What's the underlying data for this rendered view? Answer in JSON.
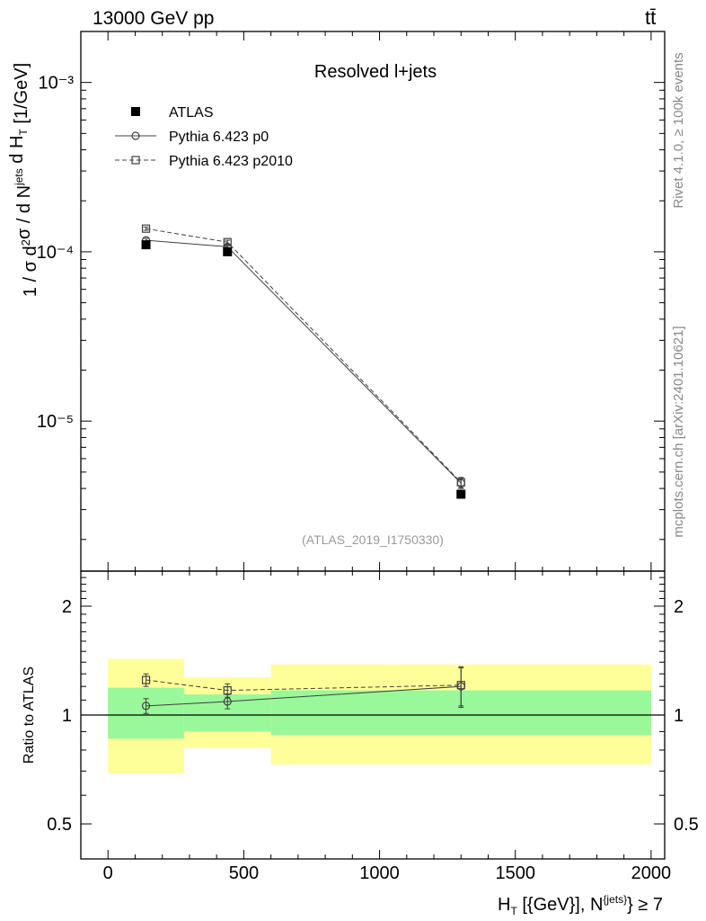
{
  "header": {
    "left": "13000 GeV pp",
    "right": "tt̄"
  },
  "side_labels": {
    "rivet": "Rivet 4.1.0, ≥ 100k events",
    "mcplots": "mcplots.cern.ch [arXiv:2401.10621]"
  },
  "chart_data": [
    {
      "type": "scatter",
      "panel": "main",
      "title": "Resolved l+jets",
      "watermark": "(ATLAS_2019_I1750330)",
      "ylabel": "1 / σ d²σ / d N^{jets} d H_T^{tt̄} [1/GeV]",
      "yscale": "log",
      "ylim": [
        1.3e-06,
        0.002
      ],
      "xlim": [
        -100,
        2050
      ],
      "y_tick_labels": [
        "10⁻³",
        "10⁻⁴",
        "10⁻⁵"
      ],
      "legend_position": "top-left",
      "series": [
        {
          "name": "ATLAS",
          "marker": "filled-square",
          "color": "#000000",
          "x": [
            140,
            440,
            1300
          ],
          "y": [
            0.00011,
            0.0001,
            3.7e-06
          ],
          "yerr": [
            3e-06,
            3e-06,
            2e-07
          ]
        },
        {
          "name": "Pythia 6.423 p0",
          "marker": "open-circle",
          "line": "solid",
          "color": "#404040",
          "x": [
            140,
            440,
            1300
          ],
          "y": [
            0.000117,
            0.000107,
            4.3e-06
          ],
          "yerr": [
            3e-06,
            3e-06,
            3e-07
          ]
        },
        {
          "name": "Pythia 6.423 p2010",
          "marker": "open-square",
          "line": "dashed",
          "color": "#404040",
          "x": [
            140,
            440,
            1300
          ],
          "y": [
            0.000137,
            0.000114,
            4.35e-06
          ],
          "yerr": [
            3e-06,
            3e-06,
            3e-07
          ]
        }
      ]
    },
    {
      "type": "scatter",
      "panel": "ratio",
      "ylabel": "Ratio to ATLAS",
      "xlabel": "H_T^{tt̄} [{GeV}], N^{jets} ≥ 7",
      "yscale": "log",
      "ylim": [
        0.4,
        2.5
      ],
      "xlim": [
        -100,
        2050
      ],
      "x_ticks": [
        0,
        500,
        1000,
        1500,
        2000
      ],
      "y_ticks": [
        0.5,
        1,
        2
      ],
      "bands": {
        "bins": [
          [
            0,
            280
          ],
          [
            280,
            600
          ],
          [
            600,
            2000
          ]
        ],
        "stat_color": "#99f899",
        "total_color": "#ffff99",
        "stat": [
          [
            0.86,
            1.19
          ],
          [
            0.9,
            1.14
          ],
          [
            0.88,
            1.17
          ]
        ],
        "total": [
          [
            0.69,
            1.43
          ],
          [
            0.81,
            1.27
          ],
          [
            0.73,
            1.38
          ]
        ]
      },
      "series": [
        {
          "name": "Pythia 6.423 p0",
          "marker": "open-circle",
          "line": "solid",
          "x": [
            140,
            440,
            1300
          ],
          "y": [
            1.06,
            1.09,
            1.2
          ],
          "yerr": [
            0.05,
            0.05,
            0.15
          ]
        },
        {
          "name": "Pythia 6.423 p2010",
          "marker": "open-square",
          "line": "dashed",
          "x": [
            140,
            440,
            1300
          ],
          "y": [
            1.25,
            1.17,
            1.21
          ],
          "yerr": [
            0.05,
            0.05,
            0.15
          ]
        }
      ]
    }
  ]
}
